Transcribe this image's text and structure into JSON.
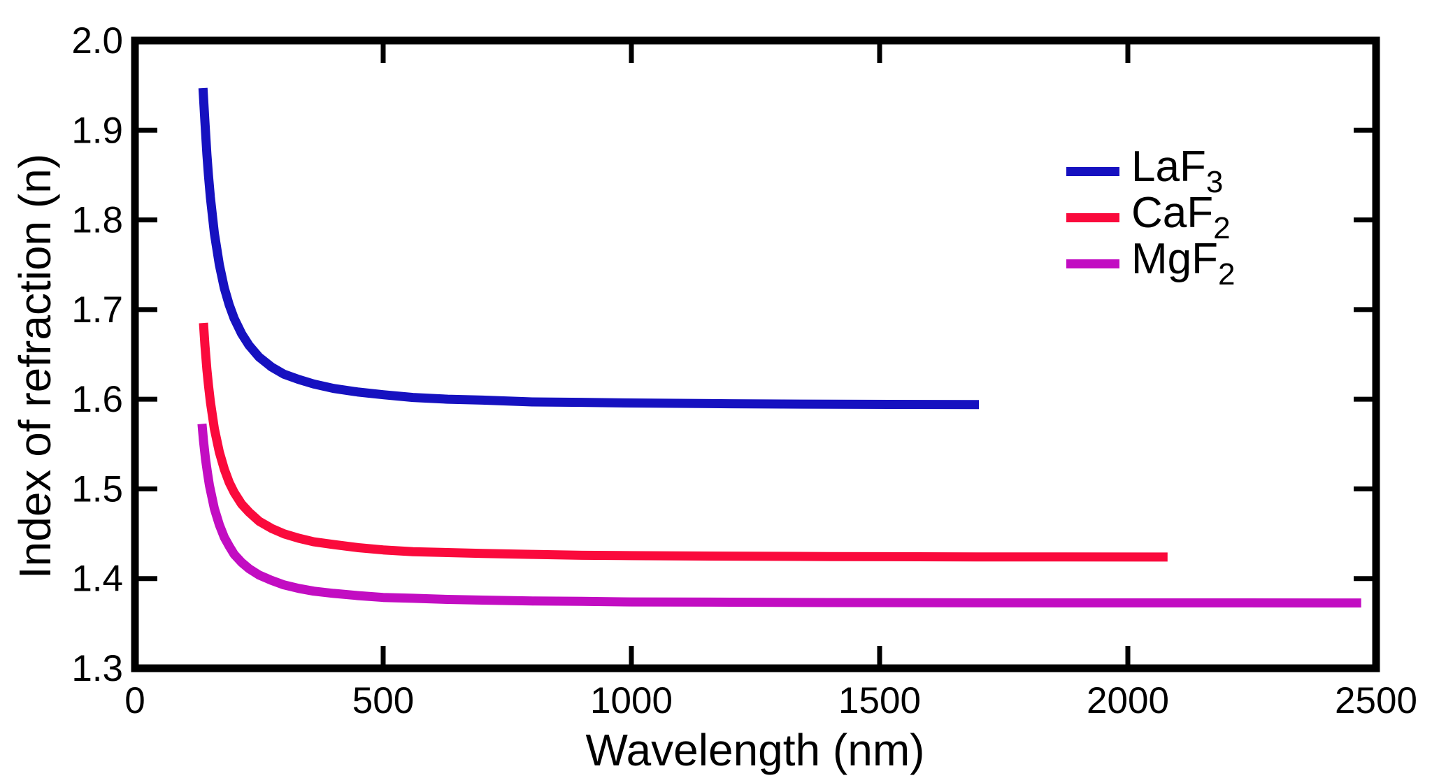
{
  "chart_data": {
    "type": "line",
    "title": "",
    "xlabel": "Wavelength (nm)",
    "ylabel": "Index of refraction (n)",
    "xlim": [
      0,
      2500
    ],
    "ylim": [
      1.3,
      2.0
    ],
    "grid": false,
    "legend_position": "upper-right-inside",
    "x_ticks": [
      0,
      500,
      1000,
      1500,
      2000,
      2500
    ],
    "x_tick_labels": [
      "0",
      "500",
      "1000",
      "1500",
      "2000",
      "2500"
    ],
    "y_ticks": [
      1.3,
      1.4,
      1.5,
      1.6,
      1.7,
      1.8,
      1.9,
      2.0
    ],
    "y_tick_labels": [
      "1.3",
      "1.4",
      "1.5",
      "1.6",
      "1.7",
      "1.8",
      "1.9",
      "2.0"
    ],
    "frame_color": "#000000",
    "background_color": "#ffffff",
    "series": [
      {
        "name": "LaF3",
        "legend_base": "LaF",
        "legend_sub": "3",
        "color": "#1611c0",
        "points": [
          [
            137,
            1.947
          ],
          [
            141,
            1.909
          ],
          [
            145,
            1.873
          ],
          [
            148,
            1.85
          ],
          [
            152,
            1.825
          ],
          [
            160,
            1.785
          ],
          [
            170,
            1.75
          ],
          [
            180,
            1.724
          ],
          [
            190,
            1.705
          ],
          [
            200,
            1.69
          ],
          [
            215,
            1.673
          ],
          [
            230,
            1.66
          ],
          [
            250,
            1.647
          ],
          [
            275,
            1.636
          ],
          [
            300,
            1.628
          ],
          [
            330,
            1.622
          ],
          [
            360,
            1.617
          ],
          [
            400,
            1.612
          ],
          [
            450,
            1.608
          ],
          [
            500,
            1.605
          ],
          [
            560,
            1.602
          ],
          [
            630,
            1.6
          ],
          [
            700,
            1.599
          ],
          [
            800,
            1.597
          ],
          [
            900,
            1.5965
          ],
          [
            1000,
            1.5958
          ],
          [
            1200,
            1.595
          ],
          [
            1400,
            1.5944
          ],
          [
            1700,
            1.594
          ]
        ]
      },
      {
        "name": "CaF2",
        "legend_base": "CaF",
        "legend_sub": "2",
        "color": "#fa0a3c",
        "points": [
          [
            138,
            1.685
          ],
          [
            141,
            1.66
          ],
          [
            145,
            1.633
          ],
          [
            148,
            1.616
          ],
          [
            152,
            1.597
          ],
          [
            160,
            1.567
          ],
          [
            170,
            1.541
          ],
          [
            180,
            1.522
          ],
          [
            190,
            1.507
          ],
          [
            200,
            1.496
          ],
          [
            215,
            1.483
          ],
          [
            230,
            1.474
          ],
          [
            250,
            1.464
          ],
          [
            275,
            1.456
          ],
          [
            300,
            1.45
          ],
          [
            330,
            1.445
          ],
          [
            360,
            1.441
          ],
          [
            400,
            1.438
          ],
          [
            450,
            1.4345
          ],
          [
            500,
            1.432
          ],
          [
            560,
            1.43
          ],
          [
            630,
            1.429
          ],
          [
            700,
            1.428
          ],
          [
            800,
            1.427
          ],
          [
            900,
            1.426
          ],
          [
            1000,
            1.4256
          ],
          [
            1200,
            1.425
          ],
          [
            1400,
            1.4246
          ],
          [
            1700,
            1.4242
          ],
          [
            2080,
            1.424
          ]
        ]
      },
      {
        "name": "MgF2",
        "legend_base": "MgF",
        "legend_sub": "2",
        "color": "#c20dc2",
        "points": [
          [
            135,
            1.5725
          ],
          [
            138,
            1.554
          ],
          [
            142,
            1.534
          ],
          [
            146,
            1.518
          ],
          [
            150,
            1.504
          ],
          [
            160,
            1.478
          ],
          [
            170,
            1.46
          ],
          [
            180,
            1.446
          ],
          [
            190,
            1.436
          ],
          [
            200,
            1.427
          ],
          [
            215,
            1.418
          ],
          [
            230,
            1.411
          ],
          [
            250,
            1.404
          ],
          [
            275,
            1.398
          ],
          [
            300,
            1.393
          ],
          [
            330,
            1.389
          ],
          [
            360,
            1.386
          ],
          [
            400,
            1.3835
          ],
          [
            450,
            1.381
          ],
          [
            500,
            1.379
          ],
          [
            560,
            1.378
          ],
          [
            630,
            1.3768
          ],
          [
            700,
            1.376
          ],
          [
            800,
            1.375
          ],
          [
            900,
            1.3746
          ],
          [
            1000,
            1.374
          ],
          [
            1200,
            1.3737
          ],
          [
            1400,
            1.3733
          ],
          [
            1700,
            1.373
          ],
          [
            2000,
            1.3729
          ],
          [
            2470,
            1.3728
          ]
        ]
      }
    ]
  }
}
